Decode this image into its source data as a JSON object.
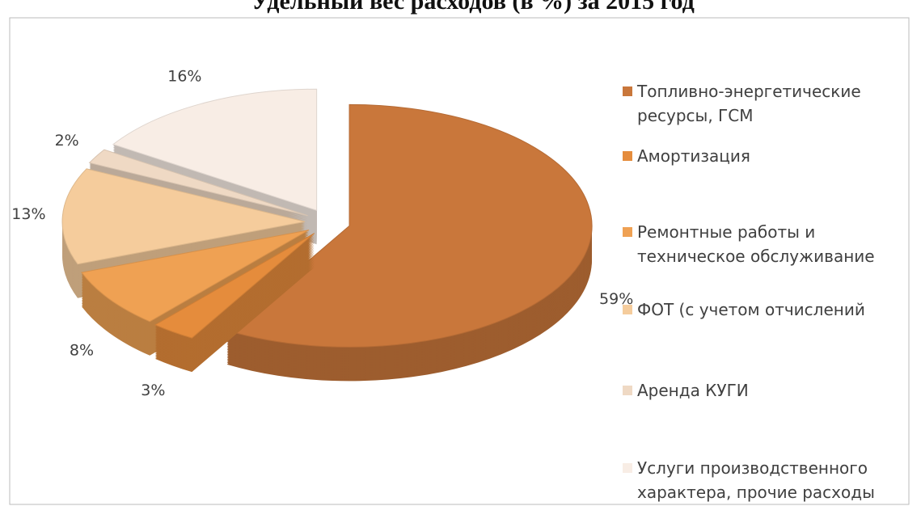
{
  "chart_data": {
    "type": "pie",
    "title": "Удельный вес расходов (в %) за 2015 год",
    "categories": [
      "Топливно-энергетические ресурсы, ГСМ",
      "Амортизация",
      "Ремонтные работы и техническое обслуживание",
      "ФОТ (с учетом отчислений",
      "Аренда КУГИ",
      "Услуги производственного характера, прочие расходы"
    ],
    "values": [
      59,
      3,
      8,
      13,
      2,
      16
    ],
    "value_labels": [
      "59%",
      "3%",
      "8%",
      "13%",
      "2%",
      "16%"
    ],
    "colors": [
      "#c9773b",
      "#e58c3c",
      "#efa153",
      "#f5cc9c",
      "#efd9c4",
      "#f8ede5"
    ],
    "legend": "right"
  }
}
